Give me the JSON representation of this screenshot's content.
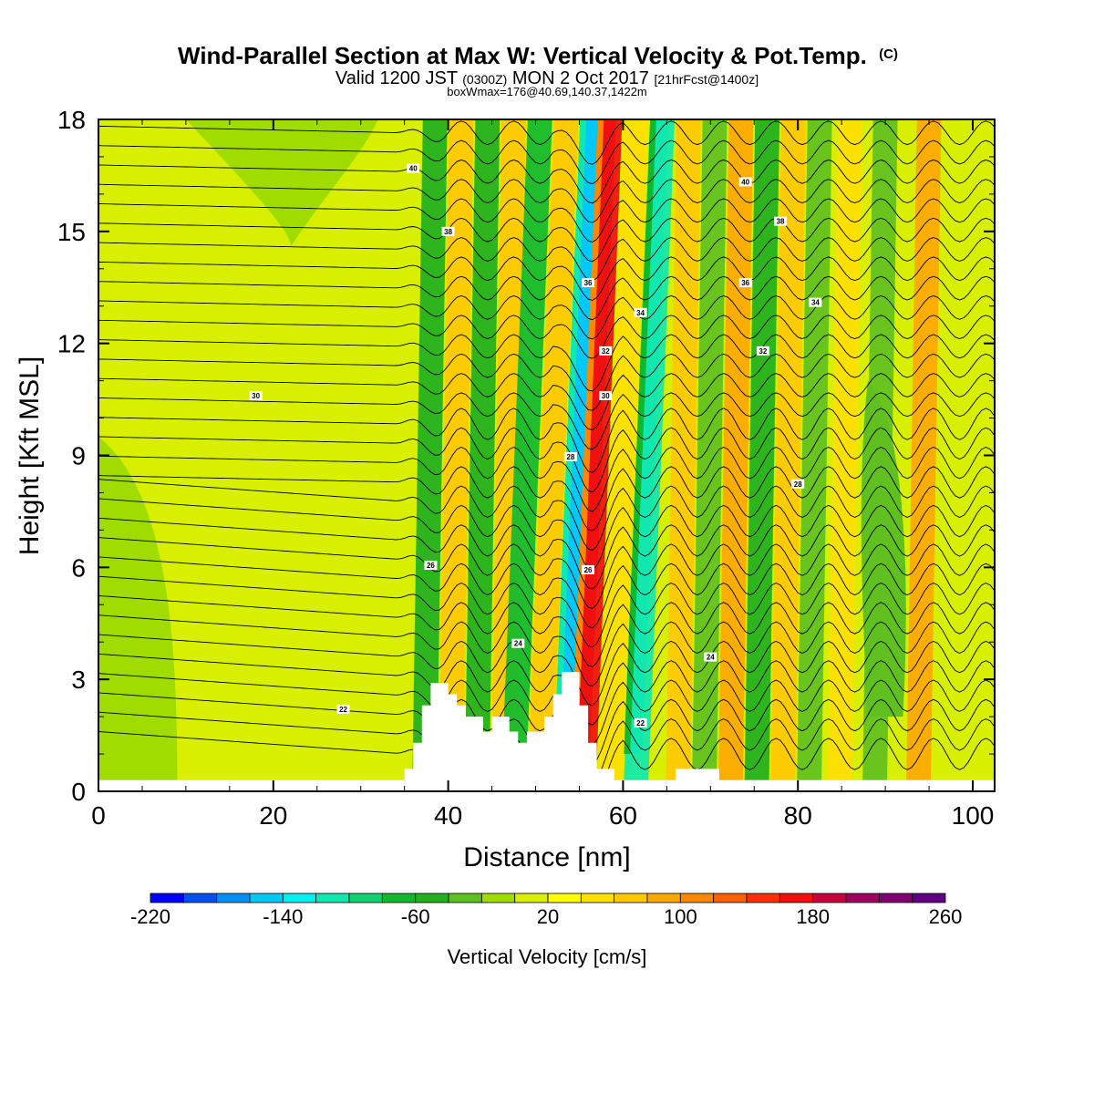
{
  "chart_data": {
    "type": "heatmap",
    "title": "Wind-Parallel Section at Max W: Vertical Velocity & Pot.Temp.",
    "title_suffix": "(C)",
    "subtitle_main": "Valid 1200 JST",
    "subtitle_utc": "(0300Z)",
    "subtitle_date": "MON 2 Oct 2017",
    "subtitle_fcst": "[21hrFcst@1400z]",
    "subtitle2": "boxWmax=176@40.69,140.37,1422m",
    "xlabel": "Distance [nm]",
    "ylabel": "Height [Kft MSL]",
    "xlim": [
      0,
      102.5
    ],
    "ylim": [
      0,
      18
    ],
    "xticks": [
      "0",
      "20",
      "40",
      "60",
      "80",
      "100"
    ],
    "xtick_values": [
      0,
      20,
      40,
      60,
      80,
      100
    ],
    "yticks": [
      "0",
      "3",
      "6",
      "9",
      "12",
      "15",
      "18"
    ],
    "ytick_values": [
      0,
      3,
      6,
      9,
      12,
      15,
      18
    ],
    "colorbar": {
      "label": "Vertical Velocity [cm/s]",
      "tick_labels": [
        "-220",
        "-140",
        "-60",
        "20",
        "100",
        "180",
        "260"
      ],
      "tick_values": [
        -220,
        -140,
        -60,
        20,
        100,
        180,
        260
      ],
      "min": -220,
      "max": 260,
      "step": 20,
      "colors": [
        "#0000ff",
        "#0050f0",
        "#0090f8",
        "#00c8f8",
        "#00f0f0",
        "#10e8b0",
        "#10d070",
        "#10b830",
        "#20b020",
        "#60c020",
        "#a0dc00",
        "#d8f000",
        "#ffff00",
        "#ffe000",
        "#ffc800",
        "#ffa800",
        "#ff8800",
        "#ff6000",
        "#ff3000",
        "#f01010",
        "#c80040",
        "#a00060",
        "#800070",
        "#600080"
      ]
    },
    "wave_bands": [
      {
        "x": 38.5,
        "w": -60
      },
      {
        "x": 41.5,
        "w": 60
      },
      {
        "x": 44.5,
        "w": -60
      },
      {
        "x": 47.5,
        "w": 60
      },
      {
        "x": 50.5,
        "w": -70
      },
      {
        "x": 53.5,
        "w": 70
      },
      {
        "x": 56.5,
        "w": -160
      },
      {
        "x": 58.5,
        "w": 176
      },
      {
        "x": 61.5,
        "w": 40
      },
      {
        "x": 64.5,
        "w": -120
      },
      {
        "x": 67.5,
        "w": 60
      },
      {
        "x": 70.5,
        "w": -40
      },
      {
        "x": 73.5,
        "w": 80
      },
      {
        "x": 76.5,
        "w": -60
      },
      {
        "x": 79.5,
        "w": 60
      },
      {
        "x": 82.5,
        "w": -40
      },
      {
        "x": 86,
        "w": 40
      },
      {
        "x": 90,
        "w": -40
      },
      {
        "x": 95,
        "w": 80
      }
    ],
    "terrain": [
      [
        0,
        0.3
      ],
      [
        35,
        0.3
      ],
      [
        35,
        0.6
      ],
      [
        36,
        0.6
      ],
      [
        36,
        1.3
      ],
      [
        37,
        1.3
      ],
      [
        37,
        2.3
      ],
      [
        38,
        2.3
      ],
      [
        38,
        2.9
      ],
      [
        40,
        2.9
      ],
      [
        40,
        2.6
      ],
      [
        41,
        2.6
      ],
      [
        41,
        2.3
      ],
      [
        42,
        2.3
      ],
      [
        42,
        2.0
      ],
      [
        44,
        2.0
      ],
      [
        44,
        1.6
      ],
      [
        45,
        1.6
      ],
      [
        45,
        2.0
      ],
      [
        47,
        2.0
      ],
      [
        47,
        1.6
      ],
      [
        48,
        1.6
      ],
      [
        48,
        1.3
      ],
      [
        49,
        1.3
      ],
      [
        49,
        1.6
      ],
      [
        51,
        1.6
      ],
      [
        51,
        2.0
      ],
      [
        52,
        2.0
      ],
      [
        52,
        2.6
      ],
      [
        53,
        2.6
      ],
      [
        53,
        3.2
      ],
      [
        55,
        3.2
      ],
      [
        55,
        2.3
      ],
      [
        56,
        2.3
      ],
      [
        56,
        1.3
      ],
      [
        57,
        1.3
      ],
      [
        57,
        0.6
      ],
      [
        59,
        0.6
      ],
      [
        59,
        0.3
      ],
      [
        66,
        0.3
      ],
      [
        66,
        0.6
      ],
      [
        71,
        0.6
      ],
      [
        71,
        0.3
      ],
      [
        102.5,
        0.3
      ],
      [
        102.5,
        0
      ],
      [
        0,
        0
      ]
    ],
    "theta_contours": [
      {
        "label": "22",
        "base": 2.2
      },
      {
        "label": "24",
        "base": 3.6
      },
      {
        "label": "26",
        "base": 6.3
      },
      {
        "label": "28",
        "base": 8.6
      },
      {
        "label": "30",
        "base": 10.6
      },
      {
        "label": "32",
        "base": 11.8
      },
      {
        "label": "34",
        "base": 13.1
      },
      {
        "label": "36",
        "base": 13.9
      },
      {
        "label": "38",
        "base": 15.0
      },
      {
        "label": "40",
        "base": 16.6
      }
    ]
  }
}
